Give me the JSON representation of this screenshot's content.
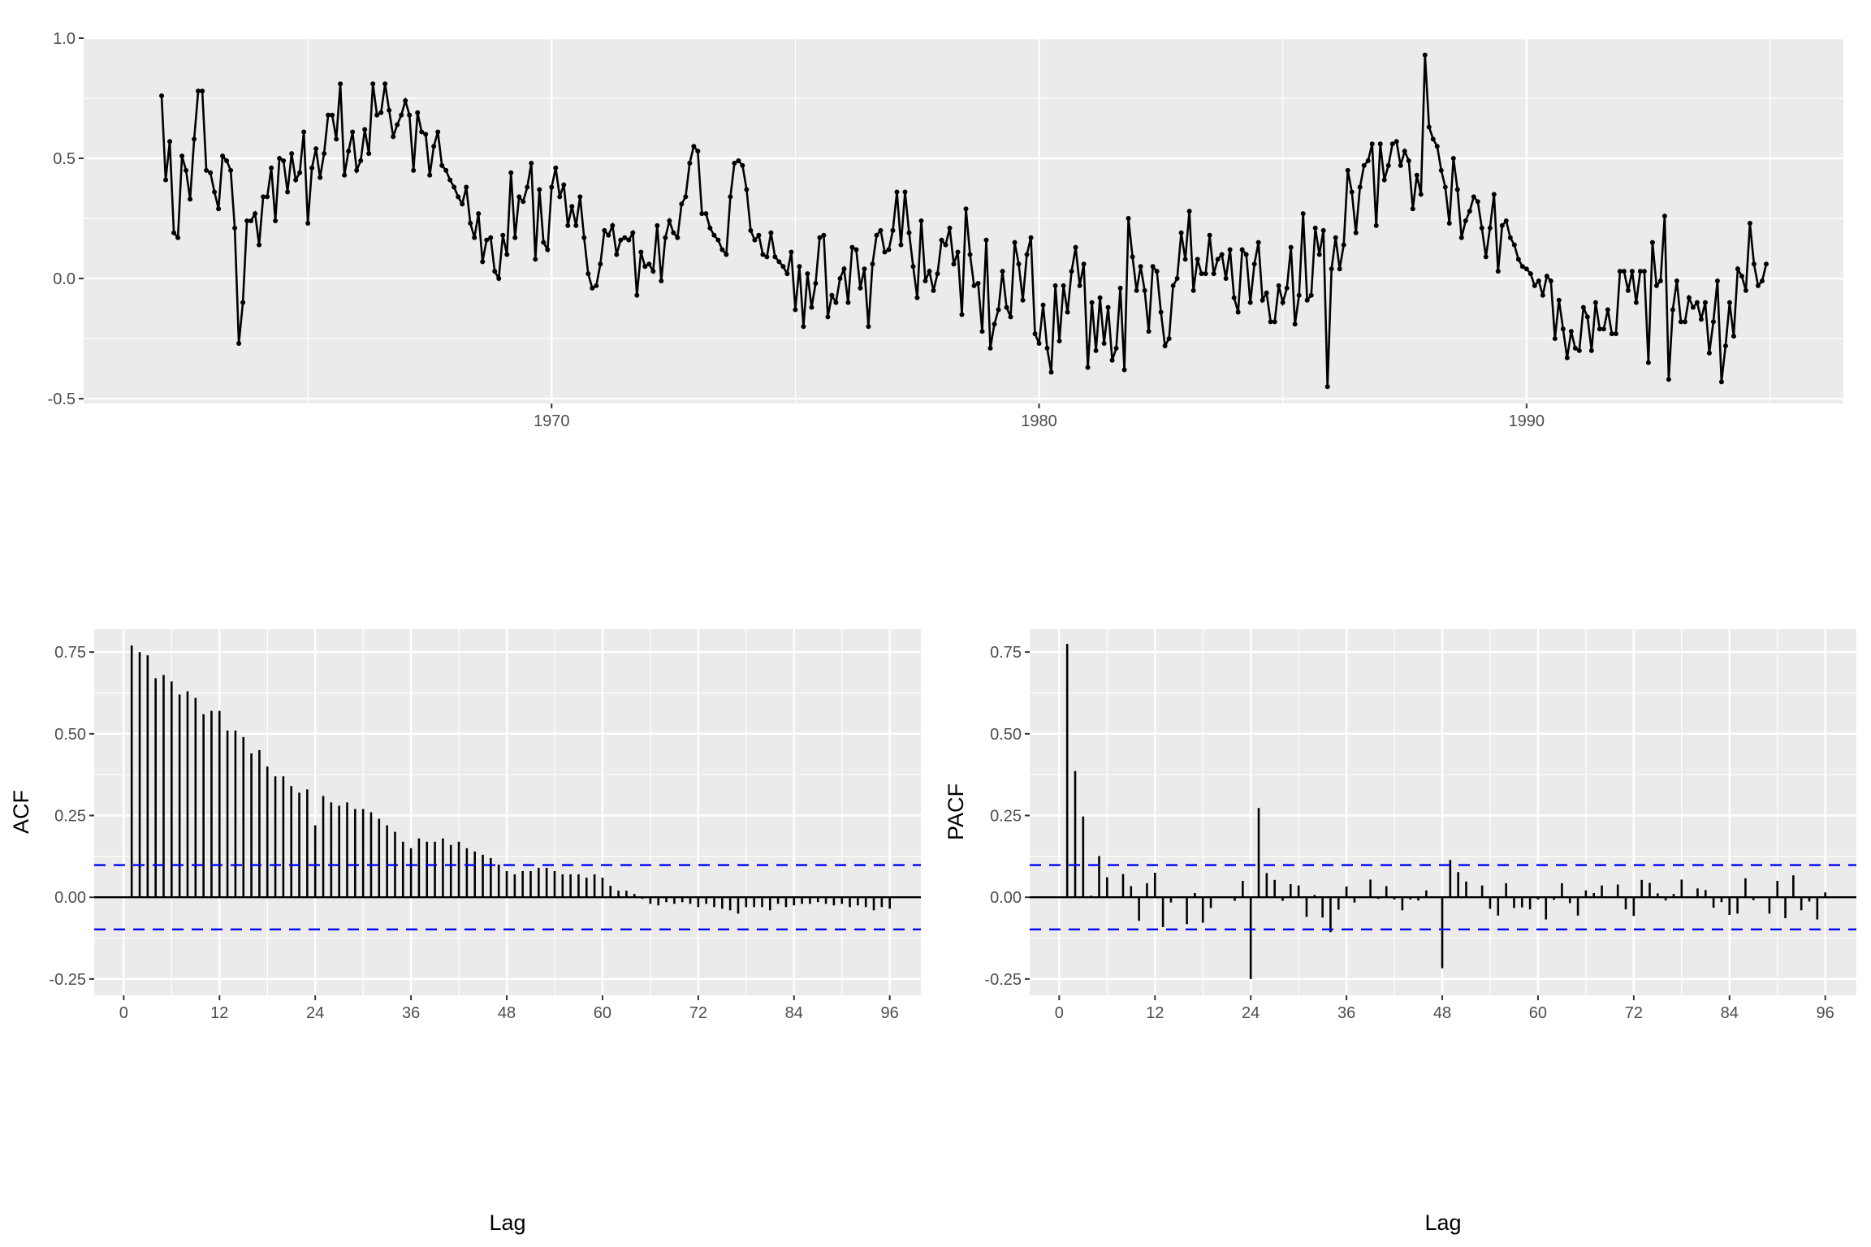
{
  "chart_data": [
    {
      "type": "line",
      "panel": "time-series",
      "markers": true,
      "series_by_year_monthly": {
        "1962": [
          0.76,
          0.41,
          0.57,
          0.19,
          0.17,
          0.51,
          0.45,
          0.33,
          0.58,
          0.78,
          0.78,
          0.45
        ],
        "1963": [
          0.44,
          0.36,
          0.29,
          0.51,
          0.49,
          0.45,
          0.21,
          -0.27,
          -0.1,
          0.24,
          0.24,
          0.27
        ],
        "1964": [
          0.14,
          0.34,
          0.34,
          0.46,
          0.24,
          0.5,
          0.49,
          0.36,
          0.52,
          0.41,
          0.44,
          0.61
        ],
        "1965": [
          0.23,
          0.46,
          0.54,
          0.42,
          0.52,
          0.68,
          0.68,
          0.58,
          0.81,
          0.43,
          0.53,
          0.61
        ],
        "1966": [
          0.45,
          0.49,
          0.62,
          0.52,
          0.81,
          0.68,
          0.69,
          0.81,
          0.7,
          0.59,
          0.64,
          0.68
        ],
        "1967": [
          0.74,
          0.68,
          0.45,
          0.69,
          0.61,
          0.6,
          0.43,
          0.55,
          0.61,
          0.47,
          0.45,
          0.41
        ],
        "1968": [
          0.38,
          0.34,
          0.31,
          0.38,
          0.23,
          0.17,
          0.27,
          0.07,
          0.16,
          0.17,
          0.03,
          0.0
        ],
        "1969": [
          0.18,
          0.1,
          0.44,
          0.17,
          0.34,
          0.32,
          0.38,
          0.48,
          0.08,
          0.37,
          0.15,
          0.12
        ],
        "1970": [
          0.38,
          0.46,
          0.34,
          0.39,
          0.22,
          0.3,
          0.22,
          0.34,
          0.17,
          0.02,
          -0.04,
          -0.03
        ],
        "1971": [
          0.06,
          0.2,
          0.18,
          0.22,
          0.1,
          0.16,
          0.17,
          0.16,
          0.19,
          -0.07,
          0.11,
          0.05
        ],
        "1972": [
          0.06,
          0.03,
          0.22,
          -0.01,
          0.17,
          0.24,
          0.19,
          0.17,
          0.31,
          0.34,
          0.48,
          0.55
        ],
        "1973": [
          0.53,
          0.27,
          0.27,
          0.21,
          0.18,
          0.16,
          0.12,
          0.1,
          0.34,
          0.48,
          0.49,
          0.47
        ],
        "1974": [
          0.37,
          0.2,
          0.16,
          0.18,
          0.1,
          0.09,
          0.19,
          0.09,
          0.07,
          0.05,
          0.02,
          0.11
        ],
        "1975": [
          -0.13,
          0.05,
          -0.2,
          0.02,
          -0.12,
          -0.02,
          0.17,
          0.18,
          -0.16,
          -0.07,
          -0.1,
          0.0
        ],
        "1976": [
          0.04,
          -0.1,
          0.13,
          0.12,
          -0.04,
          0.04,
          -0.2,
          0.06,
          0.18,
          0.2,
          0.11,
          0.12
        ],
        "1977": [
          0.2,
          0.36,
          0.14,
          0.36,
          0.19,
          0.05,
          -0.08,
          0.24,
          -0.01,
          0.03,
          -0.05,
          0.02
        ],
        "1978": [
          0.16,
          0.14,
          0.21,
          0.06,
          0.11,
          -0.15,
          0.29,
          0.1,
          -0.03,
          -0.02,
          -0.22,
          0.16
        ],
        "1979": [
          -0.29,
          -0.19,
          -0.13,
          0.03,
          -0.12,
          -0.16,
          0.15,
          0.06,
          -0.09,
          0.1,
          0.17,
          -0.23
        ],
        "1980": [
          -0.27,
          -0.11,
          -0.29,
          -0.39,
          -0.03,
          -0.26,
          -0.03,
          -0.14,
          0.03,
          0.13,
          -0.03,
          0.06
        ],
        "1981": [
          -0.37,
          -0.1,
          -0.3,
          -0.08,
          -0.27,
          -0.12,
          -0.34,
          -0.29,
          -0.04,
          -0.38,
          0.25,
          0.09
        ],
        "1982": [
          -0.05,
          0.05,
          -0.05,
          -0.22,
          0.05,
          0.03,
          -0.14,
          -0.28,
          -0.25,
          -0.03,
          0.0,
          0.19
        ],
        "1983": [
          0.08,
          0.28,
          -0.05,
          0.08,
          0.02,
          0.02,
          0.18,
          0.02,
          0.08,
          0.1,
          0.0,
          0.12
        ],
        "1984": [
          -0.08,
          -0.14,
          0.12,
          0.1,
          -0.1,
          0.06,
          0.15,
          -0.09,
          -0.06,
          -0.18,
          -0.18,
          -0.03
        ],
        "1985": [
          -0.1,
          -0.04,
          0.13,
          -0.19,
          -0.07,
          0.27,
          -0.09,
          -0.07,
          0.21,
          0.1,
          0.2,
          -0.45
        ],
        "1986": [
          0.04,
          0.17,
          0.04,
          0.14,
          0.45,
          0.36,
          0.19,
          0.38,
          0.47,
          0.49,
          0.56,
          0.22
        ],
        "1987": [
          0.56,
          0.41,
          0.47,
          0.56,
          0.57,
          0.47,
          0.53,
          0.49,
          0.29,
          0.43,
          0.35,
          0.93
        ],
        "1988": [
          0.63,
          0.58,
          0.55,
          0.45,
          0.38,
          0.23,
          0.5,
          0.37,
          0.17,
          0.24,
          0.28,
          0.34
        ],
        "1989": [
          0.32,
          0.21,
          0.09,
          0.21,
          0.35,
          0.03,
          0.22,
          0.24,
          0.17,
          0.14,
          0.08,
          0.05
        ],
        "1990": [
          0.04,
          0.02,
          -0.03,
          -0.01,
          -0.07,
          0.01,
          -0.01,
          -0.25,
          -0.09,
          -0.21,
          -0.33,
          -0.22
        ],
        "1991": [
          -0.29,
          -0.3,
          -0.12,
          -0.16,
          -0.3,
          -0.1,
          -0.21,
          -0.21,
          -0.13,
          -0.23,
          -0.23,
          0.03
        ],
        "1992": [
          0.03,
          -0.05,
          0.03,
          -0.1,
          0.03,
          0.03,
          -0.35,
          0.15,
          -0.03,
          -0.01,
          0.26,
          -0.42
        ],
        "1993": [
          -0.13,
          -0.01,
          -0.18,
          -0.18,
          -0.08,
          -0.12,
          -0.1,
          -0.17,
          -0.1,
          -0.31,
          -0.18,
          -0.01
        ],
        "1994": [
          -0.43,
          -0.28,
          -0.1,
          -0.24,
          0.04,
          0.01,
          -0.05,
          0.23,
          0.06,
          -0.03,
          -0.01,
          0.06
        ]
      },
      "xlabel": "",
      "ylabel": "",
      "xlim": [
        1960.4,
        1996.5
      ],
      "ylim": [
        -0.52,
        1.0
      ],
      "x_ticks": [
        "1970",
        "1980",
        "1990"
      ],
      "y_ticks": [
        "-0.5",
        "0.0",
        "0.5",
        "1.0"
      ],
      "grid": true,
      "color": "#000000"
    },
    {
      "type": "bar",
      "panel": "acf",
      "xlabel": "Lag",
      "ylabel": "ACF",
      "lags_from": 1,
      "values": [
        0.77,
        0.75,
        0.74,
        0.67,
        0.68,
        0.66,
        0.62,
        0.63,
        0.61,
        0.56,
        0.57,
        0.57,
        0.51,
        0.51,
        0.49,
        0.44,
        0.45,
        0.4,
        0.37,
        0.37,
        0.34,
        0.32,
        0.33,
        0.22,
        0.31,
        0.29,
        0.28,
        0.29,
        0.27,
        0.27,
        0.26,
        0.24,
        0.22,
        0.2,
        0.17,
        0.15,
        0.18,
        0.17,
        0.17,
        0.18,
        0.16,
        0.17,
        0.15,
        0.14,
        0.13,
        0.12,
        0.1,
        0.08,
        0.07,
        0.08,
        0.08,
        0.09,
        0.09,
        0.08,
        0.07,
        0.07,
        0.07,
        0.06,
        0.07,
        0.06,
        0.035,
        0.02,
        0.02,
        0.01,
        -0.005,
        -0.02,
        -0.025,
        -0.015,
        -0.02,
        -0.015,
        -0.02,
        -0.03,
        -0.02,
        -0.03,
        -0.035,
        -0.04,
        -0.05,
        -0.03,
        -0.03,
        -0.03,
        -0.04,
        -0.02,
        -0.03,
        -0.025,
        -0.02,
        -0.02,
        -0.015,
        -0.02,
        -0.025,
        -0.02,
        -0.03,
        -0.025,
        -0.03,
        -0.04,
        -0.03,
        -0.035
      ],
      "confidence_bound": 0.0985,
      "xlim": [
        -3.7,
        99.9
      ],
      "ylim": [
        -0.3,
        0.82
      ],
      "x_ticks": [
        "0",
        "12",
        "24",
        "36",
        "48",
        "60",
        "72",
        "84",
        "96"
      ],
      "y_ticks": [
        "-0.25",
        "0.00",
        "0.25",
        "0.50",
        "0.75"
      ],
      "grid": true,
      "bound_color": "#0000FF"
    },
    {
      "type": "bar",
      "panel": "pacf",
      "xlabel": "Lag",
      "ylabel": "PACF",
      "lags_from": 1,
      "values": [
        0.775,
        0.386,
        0.247,
        0.005,
        0.126,
        0.061,
        -0.001,
        0.071,
        0.034,
        -0.072,
        0.043,
        0.075,
        -0.091,
        -0.016,
        0.0,
        -0.082,
        0.013,
        -0.078,
        -0.033,
        0.0,
        0.0,
        -0.011,
        0.05,
        -0.25,
        0.273,
        0.074,
        0.053,
        -0.011,
        0.04,
        0.036,
        -0.06,
        0.007,
        -0.062,
        -0.107,
        -0.038,
        0.033,
        -0.016,
        0.003,
        0.054,
        -0.005,
        0.034,
        -0.007,
        -0.04,
        -0.007,
        -0.01,
        0.021,
        0.003,
        -0.217,
        0.114,
        0.077,
        0.048,
        0.0,
        0.036,
        -0.035,
        -0.056,
        0.043,
        -0.033,
        -0.031,
        -0.037,
        -0.007,
        -0.068,
        -0.008,
        0.043,
        -0.018,
        -0.056,
        0.021,
        0.013,
        0.036,
        0.0,
        0.039,
        -0.037,
        -0.057,
        0.053,
        0.044,
        0.012,
        -0.01,
        0.01,
        0.054,
        0.002,
        0.027,
        0.022,
        -0.032,
        -0.015,
        -0.054,
        -0.05,
        0.058,
        -0.009,
        0.0,
        -0.05,
        0.05,
        -0.064,
        0.067,
        -0.04,
        -0.013,
        -0.068,
        0.015
      ],
      "confidence_bound": 0.0985,
      "xlim": [
        -3.7,
        99.9
      ],
      "ylim": [
        -0.3,
        0.82
      ],
      "x_ticks": [
        "0",
        "12",
        "24",
        "36",
        "48",
        "60",
        "72",
        "84",
        "96"
      ],
      "y_ticks": [
        "-0.25",
        "0.00",
        "0.25",
        "0.50",
        "0.75"
      ],
      "grid": true,
      "bound_color": "#0000FF"
    }
  ],
  "colors": {
    "panel": "#EBEBEB",
    "grid": "#FFFFFF",
    "line": "#000000",
    "tick_text": "#4D4D4D"
  }
}
